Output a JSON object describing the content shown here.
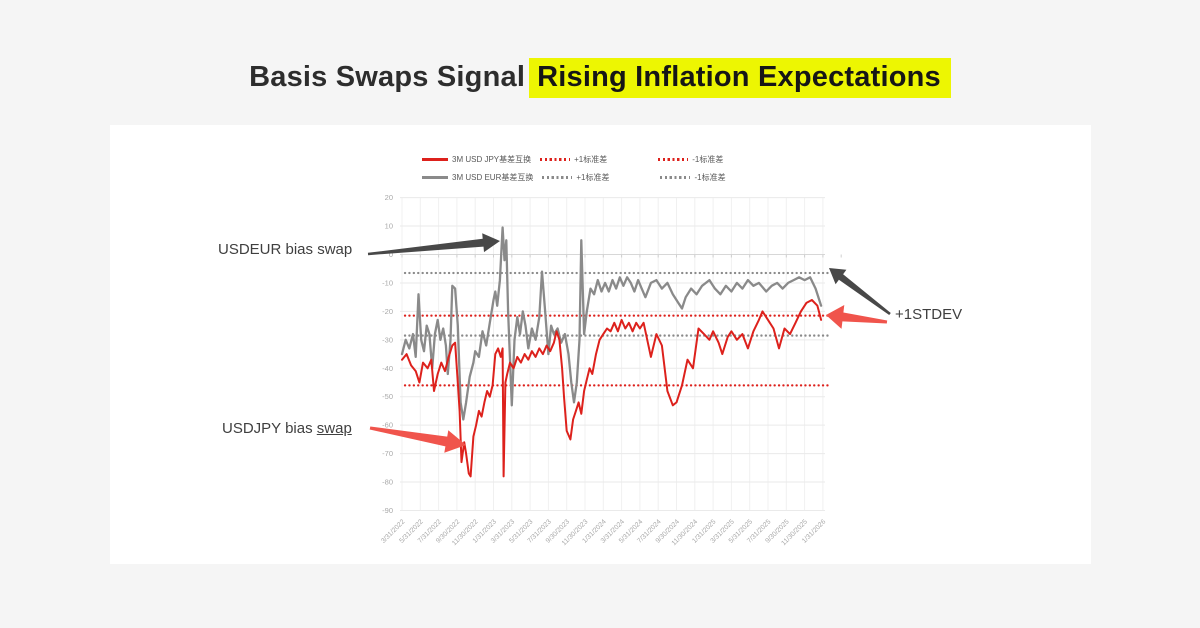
{
  "page": {
    "background": "#f5f5f5"
  },
  "title": {
    "prefix": "Basis Swaps Signal",
    "highlight": "Rising Inflation Expectations",
    "highlight_color": "#edf602",
    "text_color": "#2d2d2d"
  },
  "annotations": {
    "usdeur_label": "USDEUR bias swap",
    "usdjpy_label_prefix": "USDJPY bias ",
    "usdjpy_label_underlined": "swap",
    "stdev_label": "+1STDEV"
  },
  "colors": {
    "jpy_series": "#dd211c",
    "eur_series": "#8a8a8a",
    "arrow_dark": "#484848",
    "arrow_red": "#f0544c",
    "grid": "#eaeaea",
    "axis_text": "#a8a8a8",
    "legend_text": "#595959"
  },
  "legend": {
    "rows": [
      {
        "series_label": "3M USD JPY基差互换",
        "plus_label": "+1标准差",
        "minus_label": "-1标准差",
        "color_key": "jpy_series"
      },
      {
        "series_label": "3M USD EUR基差互换",
        "plus_label": "+1标准差",
        "minus_label": "-1标准差",
        "color_key": "eur_series"
      }
    ]
  },
  "chart_data": {
    "type": "line",
    "title": "",
    "xlabel": "",
    "ylabel": "",
    "x_unit": "months since 2022-03 (2 months per axis tick)",
    "ylim": [
      -90,
      20
    ],
    "yticks": [
      20,
      10,
      0,
      -10,
      -20,
      -30,
      -40,
      -50,
      -60,
      -70,
      -80,
      -90
    ],
    "grid": "horizontal and faint vertical",
    "legend_position": "top-center",
    "categories": [
      "3/31/2022",
      "5/31/2022",
      "7/31/2022",
      "9/30/2022",
      "11/30/2022",
      "1/31/2023",
      "3/31/2023",
      "5/31/2023",
      "7/31/2023",
      "9/30/2023",
      "11/30/2023",
      "1/31/2024",
      "3/31/2024",
      "5/31/2024",
      "7/31/2024",
      "9/30/2024",
      "11/30/2024",
      "1/31/2025",
      "3/31/2025",
      "5/31/2025",
      "7/31/2025",
      "9/30/2025",
      "11/30/2025",
      "1/31/2026"
    ],
    "series": [
      {
        "id": "usdjpy",
        "name": "3M USD JPY基差互换",
        "color_key": "jpy_series",
        "points": [
          [
            0,
            -37
          ],
          [
            0.5,
            -35
          ],
          [
            1.0,
            -39
          ],
          [
            1.5,
            -41
          ],
          [
            1.9,
            -45
          ],
          [
            2.3,
            -38
          ],
          [
            2.8,
            -40
          ],
          [
            3.2,
            -37
          ],
          [
            3.5,
            -48
          ],
          [
            3.9,
            -42
          ],
          [
            4.3,
            -38
          ],
          [
            4.7,
            -41
          ],
          [
            5.1,
            -36
          ],
          [
            5.5,
            -32
          ],
          [
            5.8,
            -31
          ],
          [
            6.1,
            -45
          ],
          [
            6.3,
            -55
          ],
          [
            6.5,
            -73
          ],
          [
            6.8,
            -66
          ],
          [
            7.0,
            -70
          ],
          [
            7.3,
            -77
          ],
          [
            7.5,
            -78
          ],
          [
            7.8,
            -64
          ],
          [
            8.1,
            -60
          ],
          [
            8.4,
            -55
          ],
          [
            8.7,
            -57
          ],
          [
            9.0,
            -52
          ],
          [
            9.3,
            -48
          ],
          [
            9.6,
            -50
          ],
          [
            9.9,
            -46
          ],
          [
            10.2,
            -35
          ],
          [
            10.5,
            -33
          ],
          [
            10.8,
            -36
          ],
          [
            11.0,
            -33
          ],
          [
            11.1,
            -78
          ],
          [
            11.3,
            -45
          ],
          [
            11.5,
            -42
          ],
          [
            11.8,
            -38
          ],
          [
            12.2,
            -40
          ],
          [
            12.6,
            -36
          ],
          [
            13.0,
            -38
          ],
          [
            13.4,
            -35
          ],
          [
            13.8,
            -37
          ],
          [
            14.2,
            -34
          ],
          [
            14.6,
            -36
          ],
          [
            15.0,
            -33
          ],
          [
            15.4,
            -35
          ],
          [
            15.8,
            -32
          ],
          [
            16.2,
            -34
          ],
          [
            16.6,
            -31
          ],
          [
            16.9,
            -27
          ],
          [
            17.2,
            -30
          ],
          [
            17.5,
            -40
          ],
          [
            17.7,
            -50
          ],
          [
            18.0,
            -62
          ],
          [
            18.4,
            -65
          ],
          [
            18.7,
            -58
          ],
          [
            19.0,
            -55
          ],
          [
            19.3,
            -52
          ],
          [
            19.6,
            -56
          ],
          [
            19.9,
            -48
          ],
          [
            20.2,
            -44
          ],
          [
            20.5,
            -40
          ],
          [
            20.8,
            -42
          ],
          [
            21.2,
            -35
          ],
          [
            21.6,
            -30
          ],
          [
            22.0,
            -28
          ],
          [
            22.4,
            -26
          ],
          [
            22.8,
            -27
          ],
          [
            23.2,
            -24
          ],
          [
            23.6,
            -27
          ],
          [
            24.0,
            -23
          ],
          [
            24.4,
            -26
          ],
          [
            24.8,
            -24
          ],
          [
            25.2,
            -27
          ],
          [
            25.6,
            -24
          ],
          [
            26.0,
            -26
          ],
          [
            26.4,
            -24
          ],
          [
            27.2,
            -36
          ],
          [
            27.8,
            -28
          ],
          [
            28.4,
            -32
          ],
          [
            29.0,
            -48
          ],
          [
            29.6,
            -53
          ],
          [
            30.0,
            -52
          ],
          [
            30.6,
            -46
          ],
          [
            31.2,
            -37
          ],
          [
            31.8,
            -40
          ],
          [
            32.4,
            -26
          ],
          [
            33.0,
            -28
          ],
          [
            33.6,
            -30
          ],
          [
            34.0,
            -27
          ],
          [
            34.6,
            -31
          ],
          [
            35.0,
            -35
          ],
          [
            35.6,
            -29
          ],
          [
            36.0,
            -27
          ],
          [
            36.6,
            -30
          ],
          [
            37.2,
            -28
          ],
          [
            37.8,
            -33
          ],
          [
            38.4,
            -27
          ],
          [
            39.0,
            -23
          ],
          [
            39.4,
            -20
          ],
          [
            40.0,
            -23
          ],
          [
            40.6,
            -26
          ],
          [
            41.2,
            -33
          ],
          [
            41.8,
            -26
          ],
          [
            42.4,
            -28
          ],
          [
            43.0,
            -24
          ],
          [
            43.6,
            -20
          ],
          [
            44.2,
            -17
          ],
          [
            44.8,
            -16
          ],
          [
            45.4,
            -18
          ],
          [
            45.8,
            -23
          ]
        ]
      },
      {
        "id": "usdeur",
        "name": "3M USD EUR基差互换",
        "color_key": "eur_series",
        "points": [
          [
            0,
            -35
          ],
          [
            0.4,
            -30
          ],
          [
            0.8,
            -33
          ],
          [
            1.2,
            -28
          ],
          [
            1.5,
            -36
          ],
          [
            1.8,
            -14
          ],
          [
            2.1,
            -30
          ],
          [
            2.4,
            -34
          ],
          [
            2.7,
            -25
          ],
          [
            3.0,
            -28
          ],
          [
            3.3,
            -40
          ],
          [
            3.6,
            -28
          ],
          [
            3.9,
            -23
          ],
          [
            4.2,
            -30
          ],
          [
            4.5,
            -26
          ],
          [
            4.8,
            -32
          ],
          [
            5.0,
            -42
          ],
          [
            5.3,
            -30
          ],
          [
            5.5,
            -11
          ],
          [
            5.8,
            -12
          ],
          [
            6.1,
            -25
          ],
          [
            6.4,
            -52
          ],
          [
            6.7,
            -58
          ],
          [
            7.0,
            -52
          ],
          [
            7.4,
            -43
          ],
          [
            7.8,
            -38
          ],
          [
            8.0,
            -34
          ],
          [
            8.4,
            -36
          ],
          [
            8.8,
            -27
          ],
          [
            9.2,
            -32
          ],
          [
            9.6,
            -24
          ],
          [
            10.0,
            -16
          ],
          [
            10.2,
            -13
          ],
          [
            10.4,
            -18
          ],
          [
            10.7,
            -9
          ],
          [
            11.0,
            9.5
          ],
          [
            11.2,
            -2
          ],
          [
            11.4,
            5
          ],
          [
            11.6,
            -20
          ],
          [
            12.0,
            -53
          ],
          [
            12.3,
            -30
          ],
          [
            12.6,
            -22
          ],
          [
            12.9,
            -28
          ],
          [
            13.2,
            -20
          ],
          [
            13.5,
            -25
          ],
          [
            13.8,
            -33
          ],
          [
            14.2,
            -26
          ],
          [
            14.6,
            -30
          ],
          [
            15.0,
            -22
          ],
          [
            15.3,
            -6
          ],
          [
            15.6,
            -18
          ],
          [
            16.0,
            -35
          ],
          [
            16.3,
            -25
          ],
          [
            16.6,
            -28
          ],
          [
            17.0,
            -26
          ],
          [
            17.4,
            -31
          ],
          [
            17.8,
            -28
          ],
          [
            18.2,
            -35
          ],
          [
            18.5,
            -45
          ],
          [
            18.8,
            -52
          ],
          [
            19.1,
            -45
          ],
          [
            19.4,
            -30
          ],
          [
            19.6,
            5
          ],
          [
            19.9,
            -28
          ],
          [
            20.2,
            -20
          ],
          [
            20.6,
            -12
          ],
          [
            21.0,
            -14
          ],
          [
            21.4,
            -9
          ],
          [
            21.8,
            -13
          ],
          [
            22.2,
            -10
          ],
          [
            22.6,
            -13
          ],
          [
            23.0,
            -9
          ],
          [
            23.4,
            -12
          ],
          [
            23.8,
            -8
          ],
          [
            24.2,
            -11
          ],
          [
            24.6,
            -8
          ],
          [
            25.0,
            -10
          ],
          [
            25.4,
            -13
          ],
          [
            25.8,
            -9
          ],
          [
            26.2,
            -12
          ],
          [
            26.6,
            -15
          ],
          [
            27.2,
            -10
          ],
          [
            27.8,
            -9
          ],
          [
            28.4,
            -12
          ],
          [
            29.0,
            -10
          ],
          [
            29.6,
            -14
          ],
          [
            30.2,
            -17
          ],
          [
            30.6,
            -19
          ],
          [
            31.0,
            -15
          ],
          [
            31.6,
            -12
          ],
          [
            32.2,
            -14
          ],
          [
            32.8,
            -11
          ],
          [
            33.6,
            -9
          ],
          [
            34.2,
            -12
          ],
          [
            34.8,
            -14
          ],
          [
            35.4,
            -11
          ],
          [
            36.0,
            -13
          ],
          [
            36.6,
            -10
          ],
          [
            37.2,
            -12
          ],
          [
            37.8,
            -9
          ],
          [
            38.4,
            -11
          ],
          [
            39.0,
            -10
          ],
          [
            39.8,
            -13
          ],
          [
            40.4,
            -11
          ],
          [
            41.0,
            -10
          ],
          [
            41.6,
            -12
          ],
          [
            42.2,
            -10
          ],
          [
            42.8,
            -9
          ],
          [
            43.4,
            -8
          ],
          [
            44.0,
            -9
          ],
          [
            44.6,
            -8
          ],
          [
            45.2,
            -12
          ],
          [
            45.8,
            -18
          ]
        ]
      }
    ],
    "ref_lines": [
      {
        "series": "jpy",
        "label": "+1标准差",
        "value": -21.5,
        "color_key": "jpy_series"
      },
      {
        "series": "jpy",
        "label": "-1标准差",
        "value": -46,
        "color_key": "jpy_series"
      },
      {
        "series": "eur",
        "label": "+1标准差",
        "value": -6.5,
        "color_key": "eur_series"
      },
      {
        "series": "eur",
        "label": "-1标准差",
        "value": -28.5,
        "color_key": "eur_series"
      }
    ]
  }
}
